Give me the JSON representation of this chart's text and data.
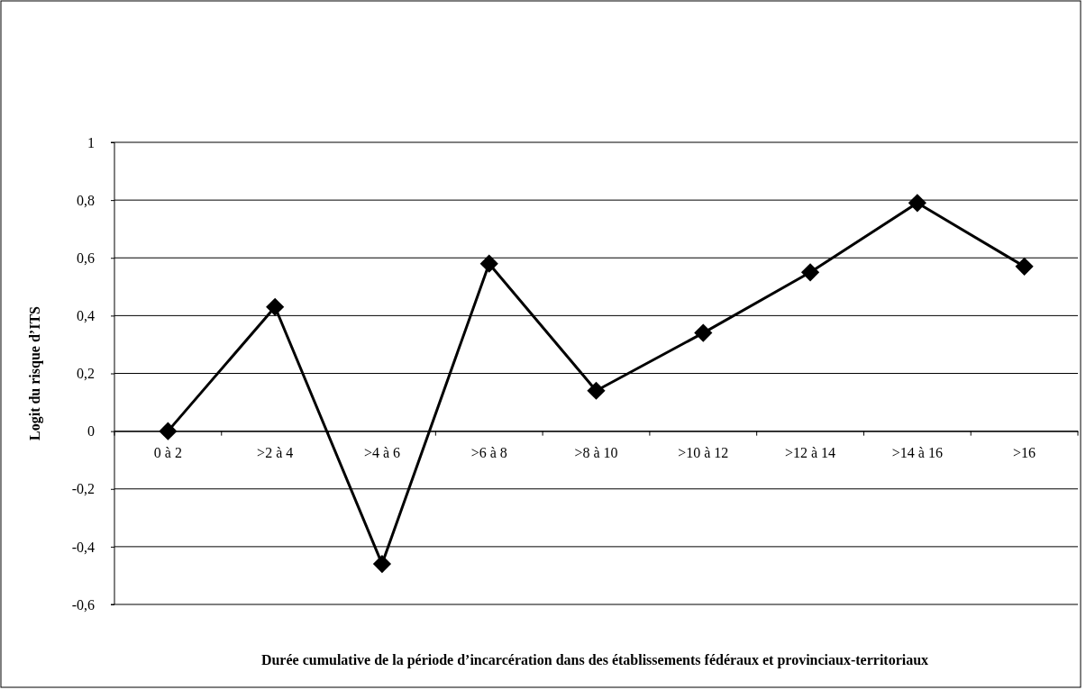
{
  "chart_data": {
    "type": "line",
    "xlabel": "Durée cumulative de la période d’incarcération dans des établissements fédéraux et provinciaux-territoriaux",
    "ylabel": "Logit du risque d’ITS",
    "categories": [
      "0 à 2",
      ">2 à 4",
      ">4 à 6",
      ">6 à 8",
      ">8 à 10",
      ">10 à 12",
      ">12 à 14",
      ">14 à 16",
      ">16"
    ],
    "series": [
      {
        "color": "#000000",
        "values": [
          0,
          0.43,
          -0.46,
          0.58,
          0.14,
          0.34,
          0.55,
          0.79,
          0.57
        ]
      }
    ],
    "ylim": [
      -0.6,
      1
    ],
    "yticks": [
      {
        "value": -0.6,
        "label": "-0,6"
      },
      {
        "value": -0.4,
        "label": "-0,4"
      },
      {
        "value": -0.2,
        "label": "-0,2"
      },
      {
        "value": 0,
        "label": "0"
      },
      {
        "value": 0.2,
        "label": "0,2"
      },
      {
        "value": 0.4,
        "label": "0,4"
      },
      {
        "value": 0.6,
        "label": "0,6"
      },
      {
        "value": 0.8,
        "label": "0,8"
      },
      {
        "value": 1,
        "label": "1"
      }
    ],
    "grid": "y",
    "marker": "diamond",
    "line_style": "solid"
  }
}
